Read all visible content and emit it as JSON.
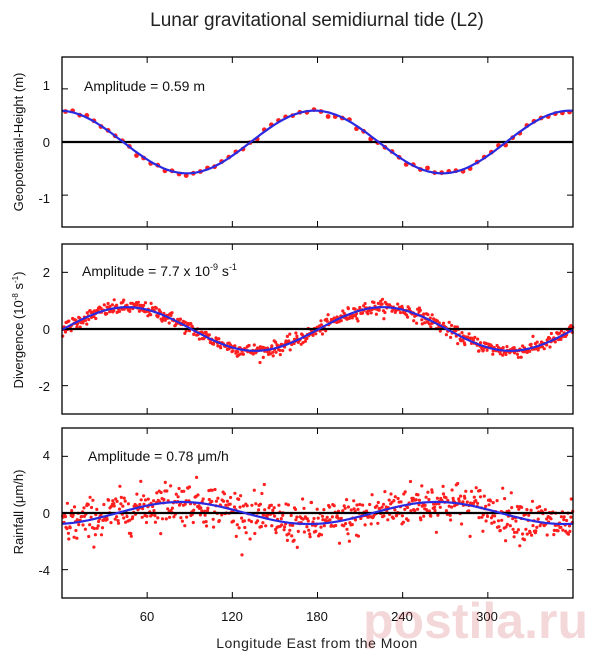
{
  "figure": {
    "title": "Lunar gravitational semidiurnal tide (L2)",
    "xlabel": "Longitude East from the Moon",
    "watermark": "postila.ru"
  },
  "colors": {
    "model_line": "#2a2ae0",
    "observations": "#ff1f1f",
    "zero_line": "#000000",
    "frame": "#000000",
    "text": "#111111"
  },
  "chart_data": [
    {
      "type": "scatter",
      "title": "",
      "annotation": "Amplitude = 0.59 m",
      "ylabel": "Geopotential-Height (m)",
      "xlabel": "",
      "xlim": [
        0,
        360
      ],
      "ylim": [
        -1.6,
        1.6
      ],
      "yticks": [
        1,
        0,
        -1
      ],
      "ytick_labels": [
        "1",
        "0",
        "-1"
      ],
      "xticks": [
        60,
        120,
        180,
        240,
        300
      ],
      "xtick_labels": [],
      "amplitude": 0.59,
      "phase_deg": 178,
      "noise": 0.03,
      "n_points": 72,
      "series": [
        {
          "name": "observed",
          "kind": "scatter"
        },
        {
          "name": "fit",
          "kind": "line"
        }
      ]
    },
    {
      "type": "scatter",
      "title": "",
      "annotation": "Amplitude = 7.7 x 10",
      "annotation_sup": "-9",
      "annotation_tail": " s",
      "annotation_sup2": "-1",
      "ylabel": "Divergence (10",
      "ylabel_sup": "-8",
      "ylabel_tail": " s",
      "ylabel_sup2": "-1",
      "ylabel_end": ")",
      "xlim": [
        0,
        360
      ],
      "ylim": [
        -3,
        3
      ],
      "yticks": [
        2,
        0,
        -2
      ],
      "ytick_labels": [
        "2",
        "0",
        "-2"
      ],
      "xticks": [
        60,
        120,
        180,
        240,
        300
      ],
      "xtick_labels": [],
      "amplitude": 0.77,
      "phase_deg": 226,
      "noise": 0.12,
      "n_points": 360,
      "series": [
        {
          "name": "observed",
          "kind": "scatter"
        },
        {
          "name": "fit",
          "kind": "line"
        }
      ]
    },
    {
      "type": "scatter",
      "title": "",
      "annotation": "Amplitude = 0.78 μm/h",
      "ylabel": "Rainfall (μm/h)",
      "xlabel": "Longitude East from the Moon",
      "xlim": [
        0,
        360
      ],
      "ylim": [
        -6,
        6
      ],
      "yticks": [
        4,
        0,
        -4
      ],
      "ytick_labels": [
        "4",
        "0",
        "-4"
      ],
      "xticks": [
        60,
        120,
        180,
        240,
        300
      ],
      "xtick_labels": [
        "60",
        "120",
        "180",
        "240",
        "300"
      ],
      "amplitude": 0.78,
      "phase_deg": 264,
      "noise": 0.75,
      "n_points": 360,
      "series": [
        {
          "name": "observed",
          "kind": "scatter"
        },
        {
          "name": "fit",
          "kind": "line"
        }
      ]
    }
  ]
}
